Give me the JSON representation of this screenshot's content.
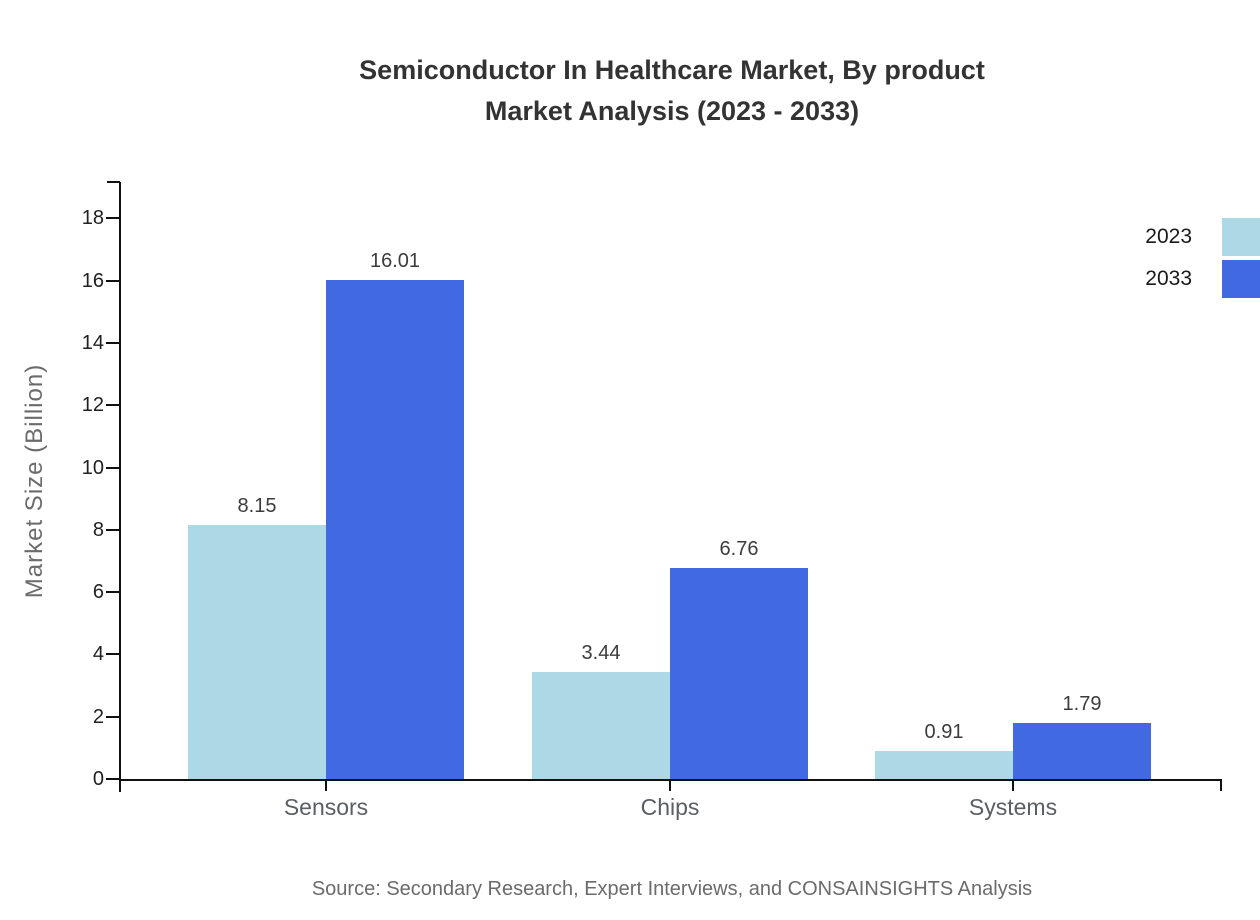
{
  "title": {
    "line1": "Semiconductor In Healthcare Market, By product",
    "line2": "Market Analysis (2023 - 2033)"
  },
  "source_note": "Source: Secondary Research, Expert Interviews, and CONSAINSIGHTS Analysis",
  "chart_data": {
    "type": "bar",
    "title": "Semiconductor In Healthcare Market, By product Market Analysis (2023 - 2033)",
    "categories": [
      "Sensors",
      "Chips",
      "Systems"
    ],
    "series": [
      {
        "name": "2023",
        "color": "#ADD8E6",
        "values": [
          8.15,
          3.44,
          0.91
        ]
      },
      {
        "name": "2033",
        "color": "#4169E1",
        "values": [
          16.01,
          6.76,
          1.79
        ]
      }
    ],
    "value_labels": [
      "8.15",
      "3.44",
      "0.91",
      "16.01",
      "6.76",
      "1.79"
    ],
    "xlabel": "",
    "ylabel": "Market Size (Billion)",
    "yticks": [
      0,
      2,
      4,
      6,
      8,
      10,
      12,
      14,
      16,
      18
    ],
    "ylim": [
      0,
      19.2
    ],
    "grid": false,
    "legend_position": "top-right",
    "value_label_decimals": 2
  },
  "colors": {
    "series_2023": "#ADD8E6",
    "series_2033": "#4169E1",
    "axis": "#111111",
    "title_text": "#333333",
    "tick_text": "#212121",
    "category_text": "#5a5f63",
    "muted_text": "#6b6b6b",
    "background": "#ffffff"
  }
}
